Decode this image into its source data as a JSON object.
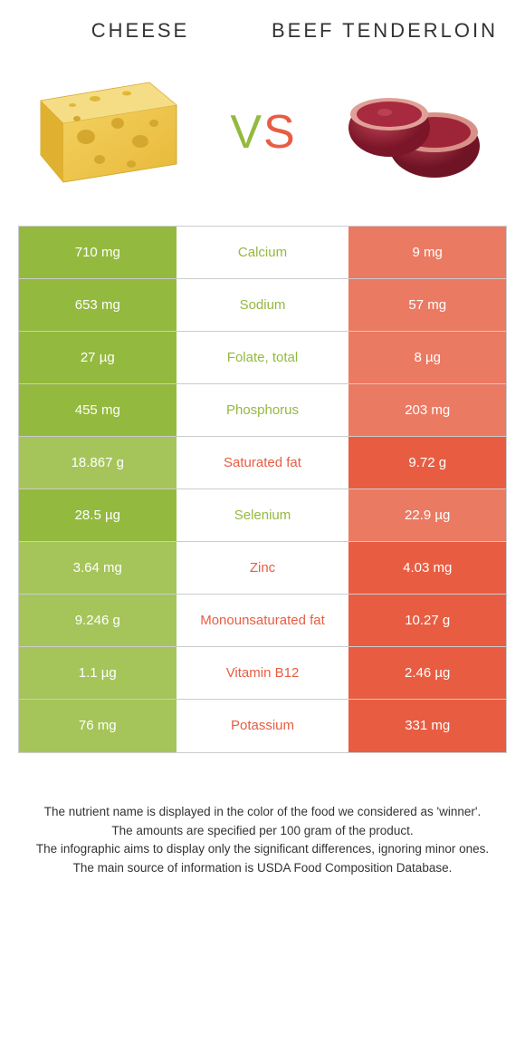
{
  "header": {
    "left_title": "Cheese",
    "right_title": "Beef tenderloin"
  },
  "vs": {
    "v": "V",
    "s": "S"
  },
  "colors": {
    "green": "#94b93f",
    "orange": "#e85d42",
    "green_dim": "#a5c55a",
    "orange_dim": "#eb7a63",
    "row_border": "#cccccc",
    "text": "#333333",
    "bg": "#ffffff",
    "cheese_main": "#f0c94a",
    "cheese_dark": "#d4a82f",
    "cheese_rind": "#e8b838",
    "beef_main": "#8b1a2e",
    "beef_light": "#b93548",
    "beef_fat": "#e8c8b8"
  },
  "table": {
    "rows": [
      {
        "left": "710 mg",
        "mid": "Calcium",
        "right": "9 mg",
        "winner": "left"
      },
      {
        "left": "653 mg",
        "mid": "Sodium",
        "right": "57 mg",
        "winner": "left"
      },
      {
        "left": "27 µg",
        "mid": "Folate, total",
        "right": "8 µg",
        "winner": "left"
      },
      {
        "left": "455 mg",
        "mid": "Phosphorus",
        "right": "203 mg",
        "winner": "left"
      },
      {
        "left": "18.867 g",
        "mid": "Saturated fat",
        "right": "9.72 g",
        "winner": "right"
      },
      {
        "left": "28.5 µg",
        "mid": "Selenium",
        "right": "22.9 µg",
        "winner": "left"
      },
      {
        "left": "3.64 mg",
        "mid": "Zinc",
        "right": "4.03 mg",
        "winner": "right"
      },
      {
        "left": "9.246 g",
        "mid": "Monounsaturated fat",
        "right": "10.27 g",
        "winner": "right"
      },
      {
        "left": "1.1 µg",
        "mid": "Vitamin B12",
        "right": "2.46 µg",
        "winner": "right"
      },
      {
        "left": "76 mg",
        "mid": "Potassium",
        "right": "331 mg",
        "winner": "right"
      }
    ]
  },
  "footer": {
    "line1": "The nutrient name is displayed in the color of the food we considered as 'winner'.",
    "line2": "The amounts are specified per 100 gram of the product.",
    "line3": "The infographic aims to display only the significant differences, ignoring minor ones.",
    "line4": "The main source of information is USDA Food Composition Database."
  }
}
